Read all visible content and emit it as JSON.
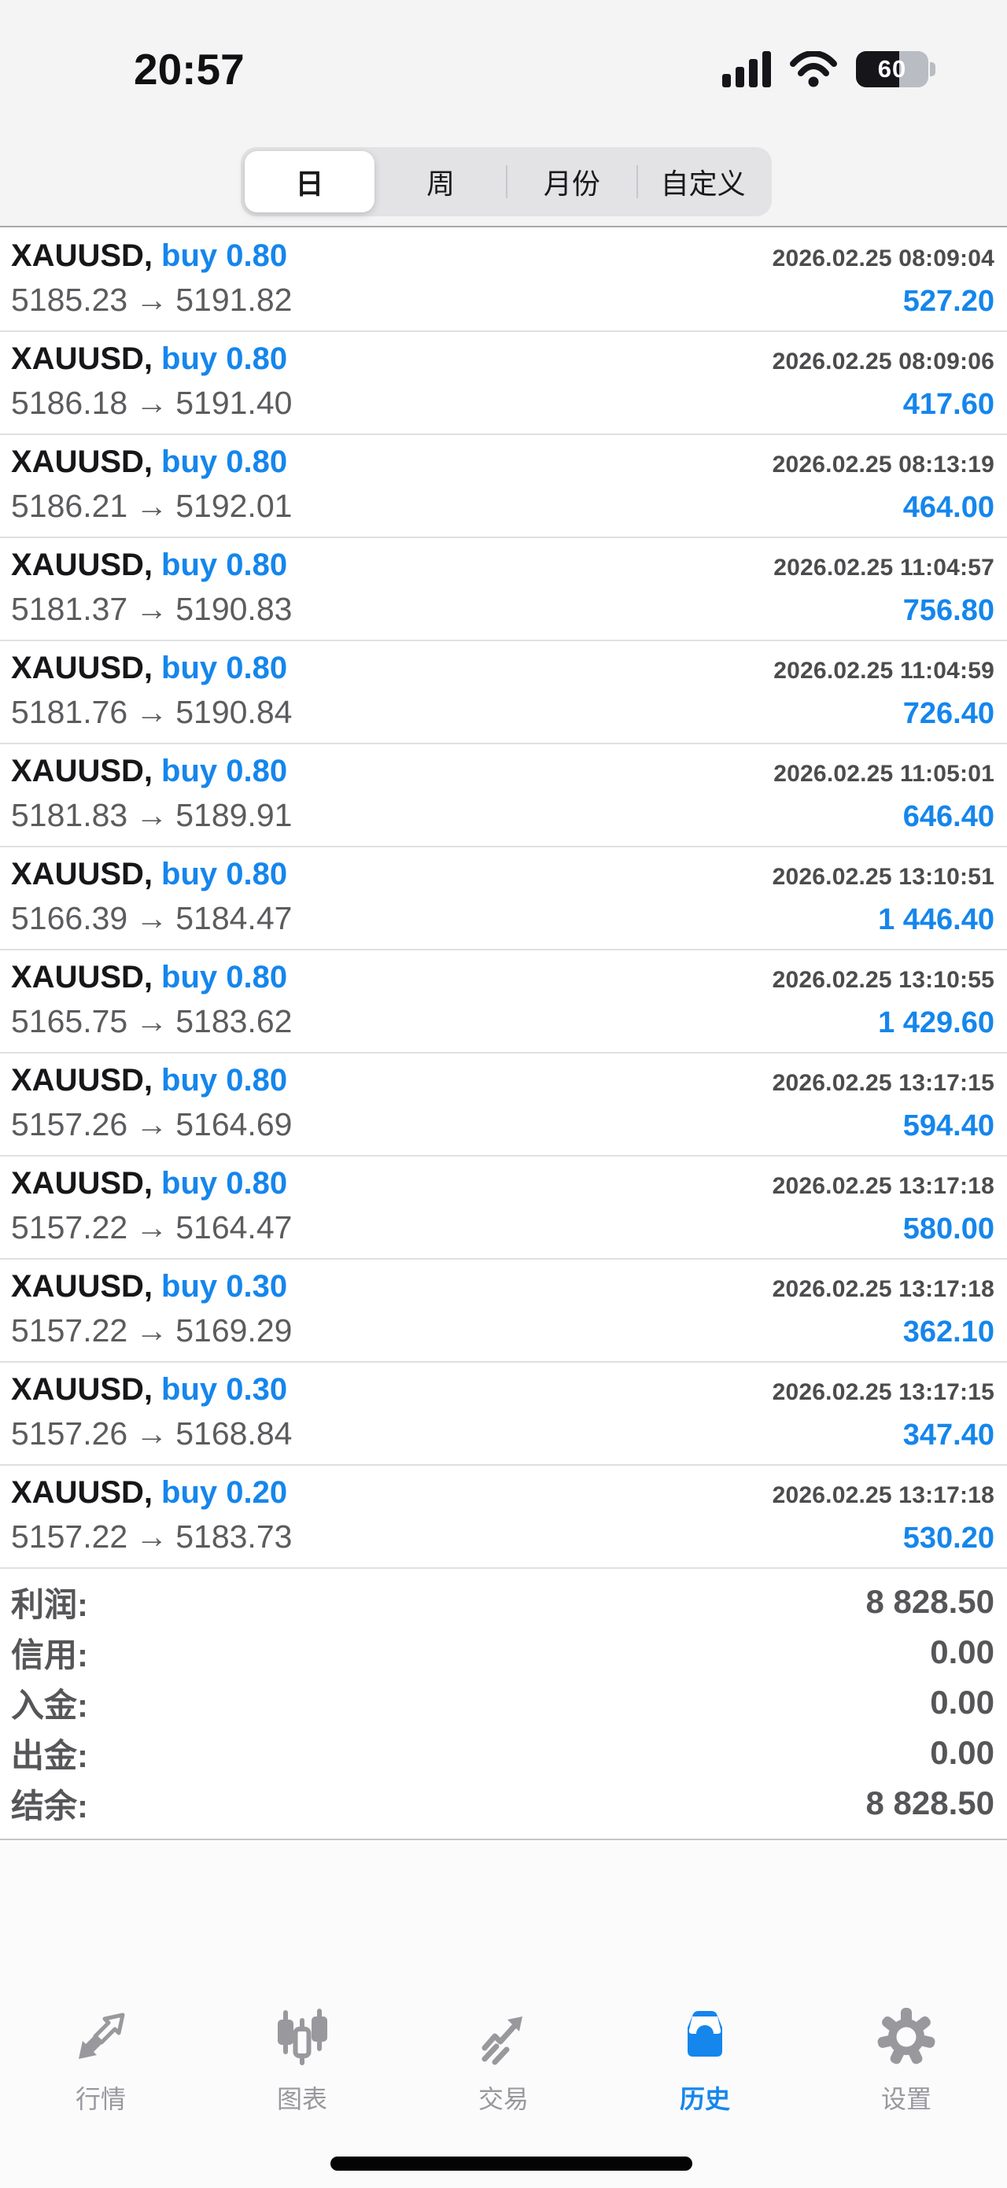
{
  "status_bar": {
    "time": "20:57",
    "battery_percent": "60"
  },
  "period_tabs": {
    "options": [
      "日",
      "周",
      "月份",
      "自定义"
    ],
    "selected": "日"
  },
  "history": {
    "trades": [
      {
        "symbol_display": "XAUUSD,",
        "side": "buy",
        "volume": "0.80",
        "open_price": "5185.23",
        "close_price": "5191.82",
        "datetime": "2026.02.25 08:09:04",
        "profit": "527.20"
      },
      {
        "symbol_display": "XAUUSD,",
        "side": "buy",
        "volume": "0.80",
        "open_price": "5186.18",
        "close_price": "5191.40",
        "datetime": "2026.02.25 08:09:06",
        "profit": "417.60"
      },
      {
        "symbol_display": "XAUUSD,",
        "side": "buy",
        "volume": "0.80",
        "open_price": "5186.21",
        "close_price": "5192.01",
        "datetime": "2026.02.25 08:13:19",
        "profit": "464.00"
      },
      {
        "symbol_display": "XAUUSD,",
        "side": "buy",
        "volume": "0.80",
        "open_price": "5181.37",
        "close_price": "5190.83",
        "datetime": "2026.02.25 11:04:57",
        "profit": "756.80"
      },
      {
        "symbol_display": "XAUUSD,",
        "side": "buy",
        "volume": "0.80",
        "open_price": "5181.76",
        "close_price": "5190.84",
        "datetime": "2026.02.25 11:04:59",
        "profit": "726.40"
      },
      {
        "symbol_display": "XAUUSD,",
        "side": "buy",
        "volume": "0.80",
        "open_price": "5181.83",
        "close_price": "5189.91",
        "datetime": "2026.02.25 11:05:01",
        "profit": "646.40"
      },
      {
        "symbol_display": "XAUUSD,",
        "side": "buy",
        "volume": "0.80",
        "open_price": "5166.39",
        "close_price": "5184.47",
        "datetime": "2026.02.25 13:10:51",
        "profit": "1 446.40"
      },
      {
        "symbol_display": "XAUUSD,",
        "side": "buy",
        "volume": "0.80",
        "open_price": "5165.75",
        "close_price": "5183.62",
        "datetime": "2026.02.25 13:10:55",
        "profit": "1 429.60"
      },
      {
        "symbol_display": "XAUUSD,",
        "side": "buy",
        "volume": "0.80",
        "open_price": "5157.26",
        "close_price": "5164.69",
        "datetime": "2026.02.25 13:17:15",
        "profit": "594.40"
      },
      {
        "symbol_display": "XAUUSD,",
        "side": "buy",
        "volume": "0.80",
        "open_price": "5157.22",
        "close_price": "5164.47",
        "datetime": "2026.02.25 13:17:18",
        "profit": "580.00"
      },
      {
        "symbol_display": "XAUUSD,",
        "side": "buy",
        "volume": "0.30",
        "open_price": "5157.22",
        "close_price": "5169.29",
        "datetime": "2026.02.25 13:17:18",
        "profit": "362.10"
      },
      {
        "symbol_display": "XAUUSD,",
        "side": "buy",
        "volume": "0.30",
        "open_price": "5157.26",
        "close_price": "5168.84",
        "datetime": "2026.02.25 13:17:15",
        "profit": "347.40"
      },
      {
        "symbol_display": "XAUUSD,",
        "side": "buy",
        "volume": "0.20",
        "open_price": "5157.22",
        "close_price": "5183.73",
        "datetime": "2026.02.25 13:17:18",
        "profit": "530.20"
      }
    ],
    "summary": {
      "rows": [
        {
          "label": "利润:",
          "value": "8 828.50"
        },
        {
          "label": "信用:",
          "value": "0.00"
        },
        {
          "label": "入金:",
          "value": "0.00"
        },
        {
          "label": "出金:",
          "value": "0.00"
        },
        {
          "label": "结余:",
          "value": "8 828.50"
        }
      ]
    }
  },
  "icons": {
    "price_arrow": "→",
    "status_icons": [
      "cellular-signal-icon",
      "wifi-icon",
      "battery-icon"
    ],
    "tab_icons": [
      "trending-arrows-icon",
      "candlestick-chart-icon",
      "trade-arrow-icon",
      "history-inbox-icon",
      "settings-gear-icon"
    ]
  },
  "tab_bar": {
    "items": [
      {
        "id": "quotes",
        "label": "行情"
      },
      {
        "id": "charts",
        "label": "图表"
      },
      {
        "id": "trade",
        "label": "交易"
      },
      {
        "id": "history",
        "label": "历史",
        "active": true
      },
      {
        "id": "settings",
        "label": "设置"
      }
    ],
    "selected": "历史"
  },
  "colors": {
    "accent": "#1586ec",
    "chrome_background": "#f4f4f5",
    "list_background": "#ffffff",
    "text_primary": "#17171a",
    "text_datetime": "#4c4c4e",
    "text_price": "#5c5c5f",
    "text_summary": "#565659",
    "tab_inactive": "#98989d",
    "divider": "#e0e0e2"
  }
}
